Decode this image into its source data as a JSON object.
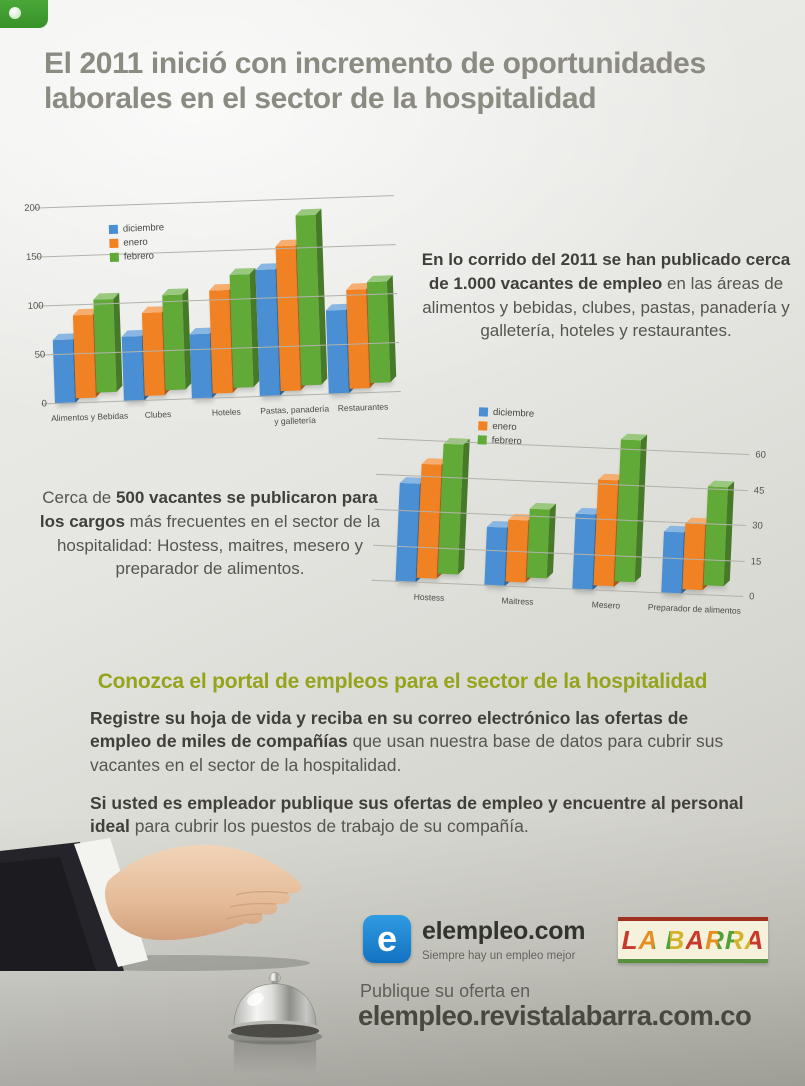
{
  "header": {
    "title": "El 2011 inició con incremento de oportunidades laborales en el sector de la hospitalidad"
  },
  "intro": {
    "bold": "En lo corrido del 2011 se han publicado cerca de 1.000 vacantes de empleo",
    "rest": " en las áreas de alimentos y bebidas, clubes, pastas, panadería y galletería, hoteles y restaurantes."
  },
  "vacantes": {
    "prefix": "Cerca de ",
    "bold": "500 vacantes se publicaron para los cargos",
    "rest": " más frecuentes en el sector de la hospitalidad: Hostess, maitres, mesero y preparador de alimentos."
  },
  "portal": {
    "heading": "Conozca el portal de empleos para el sector de la hospitalidad",
    "p1_bold": "Registre su hoja de vida y reciba en su correo electrónico las ofertas de empleo de miles de compañías",
    "p1_rest": " que usan nuestra base de datos para cubrir sus vacantes en el sector de la hospitalidad.",
    "p2_bold": "Si usted es empleador publique sus ofertas de empleo y encuentre al personal ideal",
    "p2_rest": " para cubrir los puestos de trabajo de su compañía."
  },
  "footer": {
    "elempleo_letter": "e",
    "elempleo_name": "elempleo.com",
    "elempleo_tagline": "Siempre hay un empleo mejor",
    "labarra_name": "LA BARRA",
    "cta_line": "Publique su oferta en",
    "cta_url": "elempleo.revistalabarra.com.co"
  },
  "colors": {
    "diciembre": "#4a8fd3",
    "enero": "#f08223",
    "febrero": "#62aa38",
    "heading_olive": "#96a31c",
    "title_gray": "#8b8b82",
    "elempleo_blue": "#1b7fd0"
  },
  "chart_data": [
    {
      "type": "bar",
      "categories": [
        "Alimentos y Bebidas",
        "Clubes",
        "Hoteles",
        "Pastas, panadería\ny galletería",
        "Restaurantes"
      ],
      "series": [
        {
          "name": "diciembre",
          "color": "#4a8fd3",
          "values": [
            65,
            66,
            66,
            130,
            86
          ]
        },
        {
          "name": "enero",
          "color": "#f08223",
          "values": [
            85,
            85,
            105,
            148,
            101
          ]
        },
        {
          "name": "febrero",
          "color": "#62aa38",
          "values": [
            95,
            97,
            115,
            173,
            103
          ]
        }
      ],
      "title": "",
      "xlabel": "",
      "ylabel": "",
      "ylim": [
        0,
        200
      ],
      "yticks": [
        0,
        50,
        100,
        150,
        200
      ],
      "axis_side": "left",
      "grid": true,
      "legend_position": "top-left"
    },
    {
      "type": "bar",
      "categories": [
        "Hostess",
        "Maitress",
        "Mesero",
        "Preparador de alimentos"
      ],
      "series": [
        {
          "name": "diciembre",
          "color": "#4a8fd3",
          "values": [
            42,
            25,
            32,
            26
          ]
        },
        {
          "name": "enero",
          "color": "#f08223",
          "values": [
            48,
            26,
            45,
            28
          ]
        },
        {
          "name": "febrero",
          "color": "#62aa38",
          "values": [
            55,
            29,
            60,
            42
          ]
        }
      ],
      "title": "",
      "xlabel": "",
      "ylabel": "",
      "ylim": [
        0,
        60
      ],
      "yticks": [
        0,
        15,
        30,
        45,
        60
      ],
      "axis_side": "right",
      "grid": true,
      "legend_position": "top-left"
    }
  ]
}
